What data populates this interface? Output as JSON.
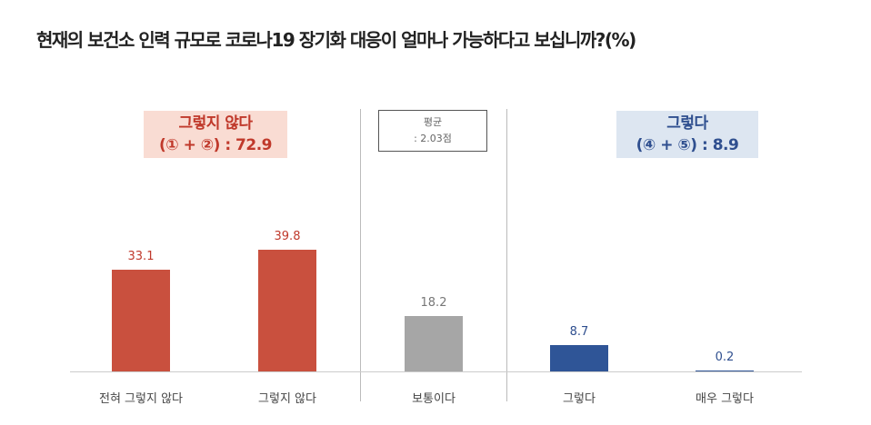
{
  "chart_data": {
    "type": "bar",
    "title": "현재의 보건소 인력 규모로 코로나19 장기화 대응이 얼마나 가능하다고 보십니까?(%)",
    "categories": [
      "전혀 그렇지 않다",
      "그렇지 않다",
      "보통이다",
      "그렇다",
      "매우 그렇다"
    ],
    "values": [
      33.1,
      39.8,
      18.2,
      8.7,
      0.2
    ],
    "value_labels": [
      "33.1",
      "39.8",
      "18.2",
      "8.7",
      "0.2"
    ],
    "colors": [
      "#c9503e",
      "#c9503e",
      "#a6a6a6",
      "#2f5597",
      "#2f5597"
    ],
    "label_colors": [
      "#c0392b",
      "#c0392b",
      "#777777",
      "#2f4f8f",
      "#2f4f8f"
    ],
    "ylim": [
      0,
      45
    ],
    "xlabel": "",
    "ylabel": ""
  },
  "groups": {
    "negative": {
      "title": "그렇지 않다",
      "sum": "(① + ②) : 72.9"
    },
    "average": {
      "title": "평균",
      "value": ": 2.03점"
    },
    "positive": {
      "title": "그렇다",
      "sum": "(④ + ⑤) : 8.9"
    }
  }
}
